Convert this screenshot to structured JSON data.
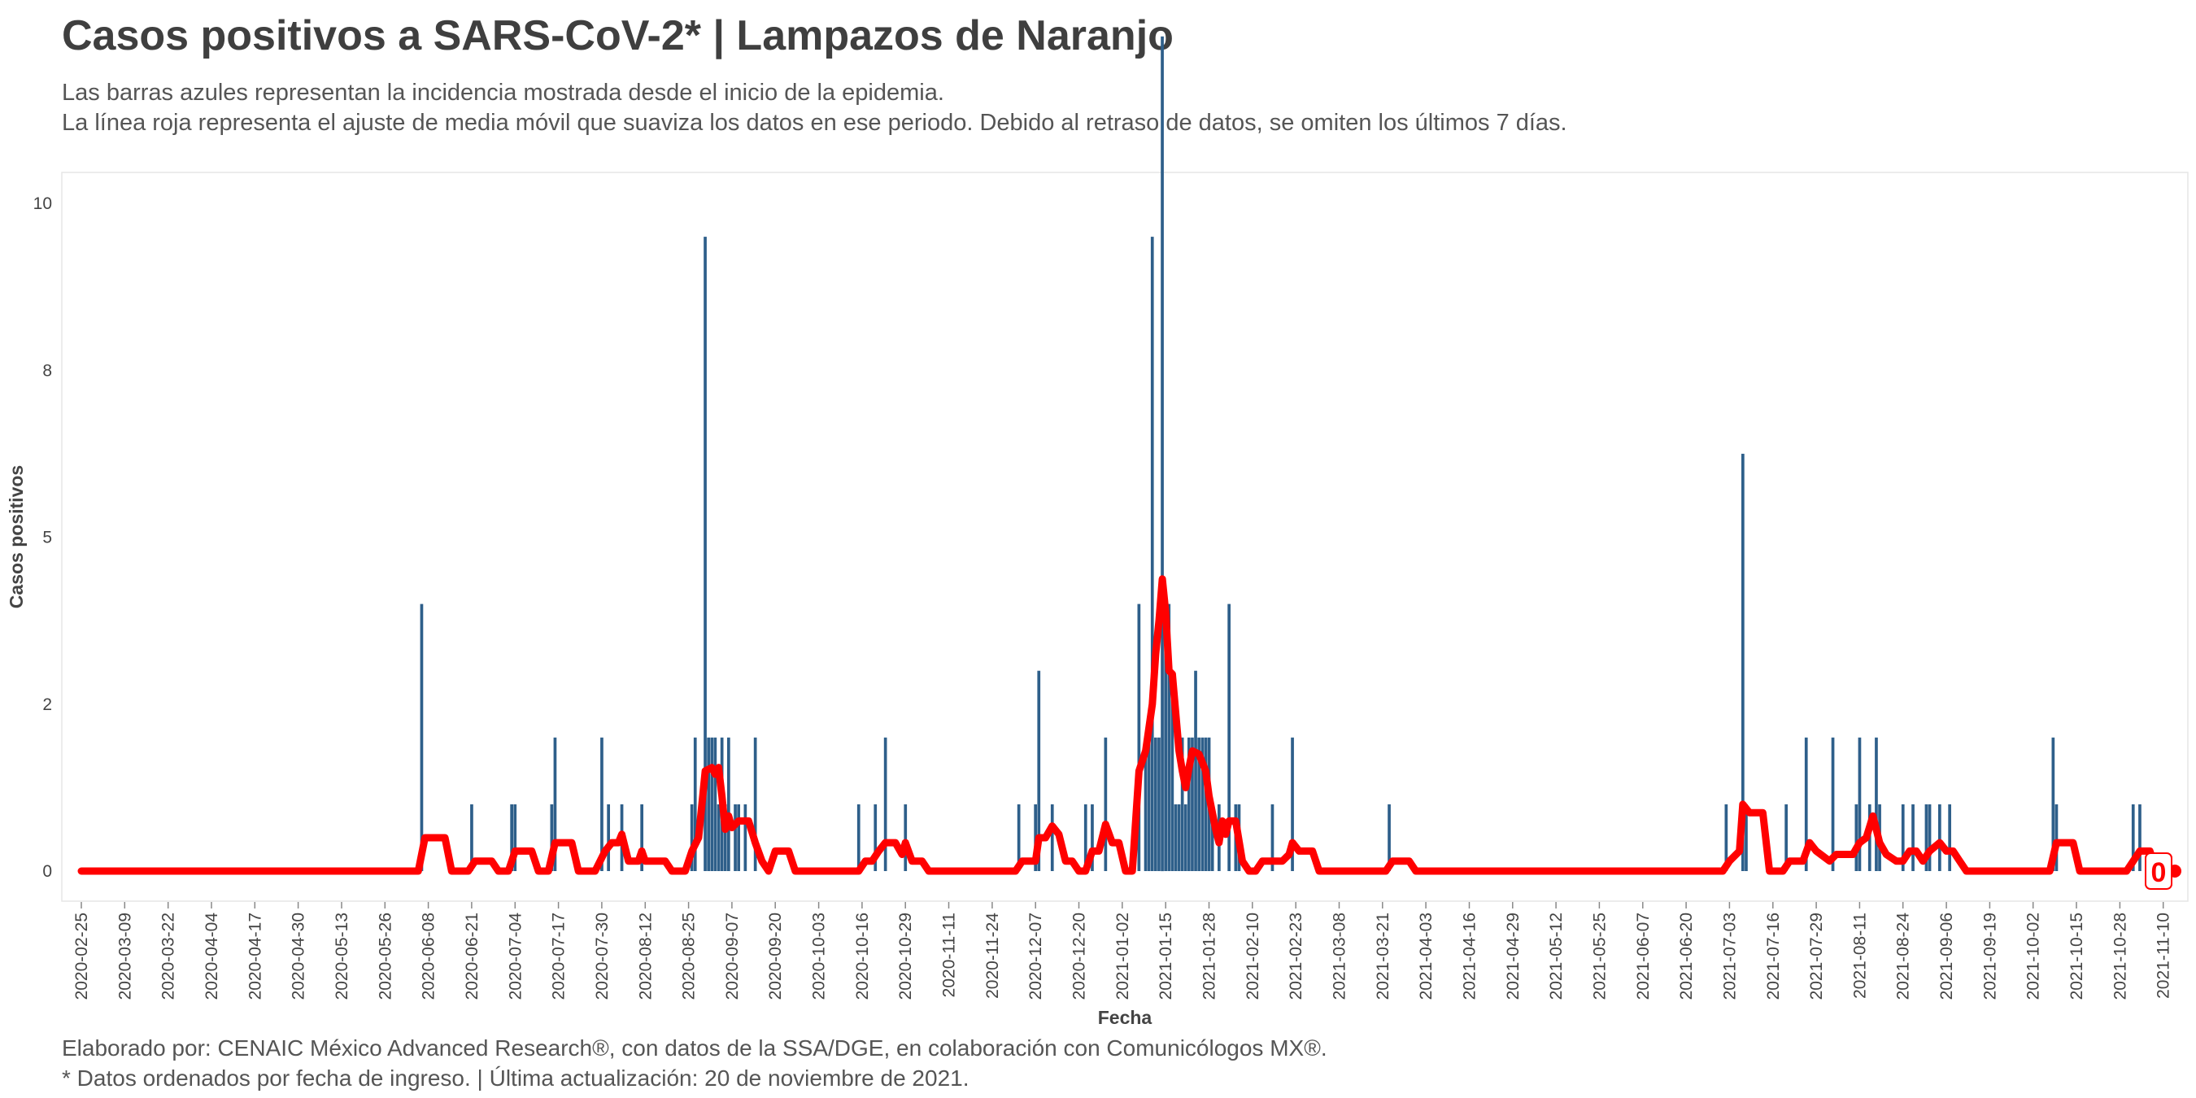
{
  "chart_data": {
    "type": "bar",
    "title": "Casos positivos a SARS-CoV-2* | Lampazos de Naranjo",
    "subtitle_lines": [
      "Las barras azules representan la incidencia mostrada desde el inicio de la epidemia.",
      "La línea roja representa el ajuste de media móvil que suaviza los datos en ese periodo. Debido al retraso de datos, se omiten los últimos 7 días."
    ],
    "xlabel": "Fecha",
    "ylabel": "Casos positivos",
    "y_ticks": [
      {
        "value": 0,
        "label": "0"
      },
      {
        "value": 1,
        "label": "2"
      },
      {
        "value": 2,
        "label": "5"
      },
      {
        "value": 3,
        "label": "8"
      },
      {
        "value": 4,
        "label": "10"
      }
    ],
    "ylim": [
      0,
      4
    ],
    "x_start": "2020-02-25",
    "x_end": "2021-11-13",
    "x_ticks": [
      "2020-02-25",
      "2020-03-09",
      "2020-03-22",
      "2020-04-04",
      "2020-04-17",
      "2020-04-30",
      "2020-05-13",
      "2020-05-26",
      "2020-06-08",
      "2020-06-21",
      "2020-07-04",
      "2020-07-17",
      "2020-07-30",
      "2020-08-12",
      "2020-08-25",
      "2020-09-07",
      "2020-09-20",
      "2020-10-03",
      "2020-10-16",
      "2020-10-29",
      "2020-11-11",
      "2020-11-24",
      "2020-12-07",
      "2020-12-20",
      "2021-01-02",
      "2021-01-15",
      "2021-01-28",
      "2021-02-10",
      "2021-02-23",
      "2021-03-08",
      "2021-03-21",
      "2021-04-03",
      "2021-04-16",
      "2021-04-29",
      "2021-05-12",
      "2021-05-25",
      "2021-06-07",
      "2021-06-20",
      "2021-07-03",
      "2021-07-16",
      "2021-07-29",
      "2021-08-11",
      "2021-08-24",
      "2021-09-06",
      "2021-09-19",
      "2021-10-02",
      "2021-10-15",
      "2021-10-28",
      "2021-11-10"
    ],
    "bars": [
      [
        "2020-06-06",
        1.6
      ],
      [
        "2020-06-21",
        0.4
      ],
      [
        "2020-07-03",
        0.4
      ],
      [
        "2020-07-04",
        0.4
      ],
      [
        "2020-07-15",
        0.4
      ],
      [
        "2020-07-16",
        0.8
      ],
      [
        "2020-07-30",
        0.8
      ],
      [
        "2020-08-01",
        0.4
      ],
      [
        "2020-08-05",
        0.4
      ],
      [
        "2020-08-11",
        0.4
      ],
      [
        "2020-08-26",
        0.4
      ],
      [
        "2020-08-27",
        0.8
      ],
      [
        "2020-08-30",
        3.8
      ],
      [
        "2020-08-31",
        0.8
      ],
      [
        "2020-09-01",
        0.8
      ],
      [
        "2020-09-02",
        0.8
      ],
      [
        "2020-09-03",
        0.4
      ],
      [
        "2020-09-04",
        0.8
      ],
      [
        "2020-09-05",
        0.4
      ],
      [
        "2020-09-06",
        0.8
      ],
      [
        "2020-09-08",
        0.4
      ],
      [
        "2020-09-09",
        0.4
      ],
      [
        "2020-09-11",
        0.4
      ],
      [
        "2020-09-14",
        0.8
      ],
      [
        "2020-10-15",
        0.4
      ],
      [
        "2020-10-20",
        0.4
      ],
      [
        "2020-10-23",
        0.8
      ],
      [
        "2020-10-29",
        0.4
      ],
      [
        "2020-12-02",
        0.4
      ],
      [
        "2020-12-07",
        0.4
      ],
      [
        "2020-12-08",
        1.2
      ],
      [
        "2020-12-12",
        0.4
      ],
      [
        "2020-12-22",
        0.4
      ],
      [
        "2020-12-24",
        0.4
      ],
      [
        "2020-12-28",
        0.8
      ],
      [
        "2021-01-07",
        1.6
      ],
      [
        "2021-01-09",
        0.8
      ],
      [
        "2021-01-10",
        0.8
      ],
      [
        "2021-01-11",
        3.8
      ],
      [
        "2021-01-12",
        0.8
      ],
      [
        "2021-01-13",
        0.8
      ],
      [
        "2021-01-14",
        5.0
      ],
      [
        "2021-01-15",
        1.6
      ],
      [
        "2021-01-16",
        1.6
      ],
      [
        "2021-01-17",
        1.2
      ],
      [
        "2021-01-18",
        0.4
      ],
      [
        "2021-01-19",
        0.4
      ],
      [
        "2021-01-20",
        0.8
      ],
      [
        "2021-01-21",
        0.4
      ],
      [
        "2021-01-22",
        0.8
      ],
      [
        "2021-01-23",
        0.8
      ],
      [
        "2021-01-24",
        1.2
      ],
      [
        "2021-01-25",
        0.8
      ],
      [
        "2021-01-26",
        0.8
      ],
      [
        "2021-01-27",
        0.8
      ],
      [
        "2021-01-28",
        0.8
      ],
      [
        "2021-01-29",
        0.4
      ],
      [
        "2021-01-31",
        0.4
      ],
      [
        "2021-02-03",
        1.6
      ],
      [
        "2021-02-05",
        0.4
      ],
      [
        "2021-02-06",
        0.4
      ],
      [
        "2021-02-16",
        0.4
      ],
      [
        "2021-02-22",
        0.8
      ],
      [
        "2021-03-23",
        0.4
      ],
      [
        "2021-07-02",
        0.4
      ],
      [
        "2021-07-07",
        2.5
      ],
      [
        "2021-07-08",
        0.4
      ],
      [
        "2021-07-20",
        0.4
      ],
      [
        "2021-07-26",
        0.8
      ],
      [
        "2021-08-03",
        0.8
      ],
      [
        "2021-08-10",
        0.4
      ],
      [
        "2021-08-11",
        0.8
      ],
      [
        "2021-08-14",
        0.4
      ],
      [
        "2021-08-16",
        0.8
      ],
      [
        "2021-08-17",
        0.4
      ],
      [
        "2021-08-24",
        0.4
      ],
      [
        "2021-08-27",
        0.4
      ],
      [
        "2021-08-31",
        0.4
      ],
      [
        "2021-09-01",
        0.4
      ],
      [
        "2021-09-04",
        0.4
      ],
      [
        "2021-09-07",
        0.4
      ],
      [
        "2021-10-08",
        0.8
      ],
      [
        "2021-10-09",
        0.4
      ],
      [
        "2021-11-01",
        0.4
      ],
      [
        "2021-11-03",
        0.4
      ]
    ],
    "moving_average": [
      [
        "2020-02-25",
        0
      ],
      [
        "2020-06-05",
        0
      ],
      [
        "2020-06-07",
        0.2
      ],
      [
        "2020-06-13",
        0.2
      ],
      [
        "2020-06-15",
        0
      ],
      [
        "2020-06-20",
        0
      ],
      [
        "2020-06-22",
        0.06
      ],
      [
        "2020-06-27",
        0.06
      ],
      [
        "2020-06-29",
        0
      ],
      [
        "2020-07-02",
        0
      ],
      [
        "2020-07-04",
        0.12
      ],
      [
        "2020-07-09",
        0.12
      ],
      [
        "2020-07-11",
        0
      ],
      [
        "2020-07-14",
        0
      ],
      [
        "2020-07-16",
        0.17
      ],
      [
        "2020-07-21",
        0.17
      ],
      [
        "2020-07-23",
        0
      ],
      [
        "2020-07-28",
        0
      ],
      [
        "2020-07-31",
        0.12
      ],
      [
        "2020-08-02",
        0.17
      ],
      [
        "2020-08-04",
        0.17
      ],
      [
        "2020-08-05",
        0.22
      ],
      [
        "2020-08-07",
        0.06
      ],
      [
        "2020-08-10",
        0.06
      ],
      [
        "2020-08-11",
        0.12
      ],
      [
        "2020-08-12",
        0.06
      ],
      [
        "2020-08-18",
        0.06
      ],
      [
        "2020-08-20",
        0
      ],
      [
        "2020-08-24",
        0
      ],
      [
        "2020-08-26",
        0.12
      ],
      [
        "2020-08-28",
        0.2
      ],
      [
        "2020-08-30",
        0.6
      ],
      [
        "2020-09-01",
        0.62
      ],
      [
        "2020-09-02",
        0.58
      ],
      [
        "2020-09-03",
        0.62
      ],
      [
        "2020-09-04",
        0.45
      ],
      [
        "2020-09-05",
        0.25
      ],
      [
        "2020-09-06",
        0.33
      ],
      [
        "2020-09-07",
        0.26
      ],
      [
        "2020-09-09",
        0.3
      ],
      [
        "2020-09-12",
        0.3
      ],
      [
        "2020-09-14",
        0.17
      ],
      [
        "2020-09-16",
        0.06
      ],
      [
        "2020-09-18",
        0
      ],
      [
        "2020-09-20",
        0.12
      ],
      [
        "2020-09-24",
        0.12
      ],
      [
        "2020-09-26",
        0
      ],
      [
        "2020-10-15",
        0
      ],
      [
        "2020-10-17",
        0.06
      ],
      [
        "2020-10-19",
        0.06
      ],
      [
        "2020-10-21",
        0.12
      ],
      [
        "2020-10-23",
        0.17
      ],
      [
        "2020-10-26",
        0.17
      ],
      [
        "2020-10-28",
        0.1
      ],
      [
        "2020-10-29",
        0.17
      ],
      [
        "2020-10-31",
        0.06
      ],
      [
        "2020-11-03",
        0.06
      ],
      [
        "2020-11-05",
        0
      ],
      [
        "2020-12-01",
        0
      ],
      [
        "2020-12-03",
        0.06
      ],
      [
        "2020-12-07",
        0.06
      ],
      [
        "2020-12-08",
        0.2
      ],
      [
        "2020-12-10",
        0.2
      ],
      [
        "2020-12-12",
        0.27
      ],
      [
        "2020-12-14",
        0.22
      ],
      [
        "2020-12-16",
        0.06
      ],
      [
        "2020-12-18",
        0.06
      ],
      [
        "2020-12-20",
        0
      ],
      [
        "2020-12-22",
        0
      ],
      [
        "2020-12-24",
        0.12
      ],
      [
        "2020-12-26",
        0.12
      ],
      [
        "2020-12-28",
        0.28
      ],
      [
        "2020-12-30",
        0.17
      ],
      [
        "2021-01-01",
        0.17
      ],
      [
        "2021-01-03",
        0
      ],
      [
        "2021-01-05",
        0
      ],
      [
        "2021-01-07",
        0.6
      ],
      [
        "2021-01-09",
        0.72
      ],
      [
        "2021-01-11",
        1.0
      ],
      [
        "2021-01-12",
        1.3
      ],
      [
        "2021-01-13",
        1.5
      ],
      [
        "2021-01-14",
        1.75
      ],
      [
        "2021-01-15",
        1.55
      ],
      [
        "2021-01-16",
        1.2
      ],
      [
        "2021-01-17",
        1.18
      ],
      [
        "2021-01-18",
        0.95
      ],
      [
        "2021-01-19",
        0.72
      ],
      [
        "2021-01-20",
        0.6
      ],
      [
        "2021-01-21",
        0.5
      ],
      [
        "2021-01-22",
        0.62
      ],
      [
        "2021-01-23",
        0.72
      ],
      [
        "2021-01-25",
        0.7
      ],
      [
        "2021-01-26",
        0.65
      ],
      [
        "2021-01-27",
        0.6
      ],
      [
        "2021-01-28",
        0.45
      ],
      [
        "2021-01-29",
        0.35
      ],
      [
        "2021-01-30",
        0.25
      ],
      [
        "2021-01-31",
        0.17
      ],
      [
        "2021-02-01",
        0.3
      ],
      [
        "2021-02-02",
        0.22
      ],
      [
        "2021-02-03",
        0.3
      ],
      [
        "2021-02-05",
        0.3
      ],
      [
        "2021-02-07",
        0.06
      ],
      [
        "2021-02-09",
        0
      ],
      [
        "2021-02-11",
        0
      ],
      [
        "2021-02-13",
        0.06
      ],
      [
        "2021-02-19",
        0.06
      ],
      [
        "2021-02-21",
        0.1
      ],
      [
        "2021-02-22",
        0.17
      ],
      [
        "2021-02-24",
        0.12
      ],
      [
        "2021-02-28",
        0.12
      ],
      [
        "2021-03-02",
        0
      ],
      [
        "2021-03-22",
        0
      ],
      [
        "2021-03-24",
        0.06
      ],
      [
        "2021-03-29",
        0.06
      ],
      [
        "2021-03-31",
        0
      ],
      [
        "2021-07-01",
        0
      ],
      [
        "2021-07-03",
        0.06
      ],
      [
        "2021-07-06",
        0.12
      ],
      [
        "2021-07-07",
        0.4
      ],
      [
        "2021-07-09",
        0.35
      ],
      [
        "2021-07-13",
        0.35
      ],
      [
        "2021-07-15",
        0
      ],
      [
        "2021-07-19",
        0
      ],
      [
        "2021-07-21",
        0.06
      ],
      [
        "2021-07-25",
        0.06
      ],
      [
        "2021-07-27",
        0.17
      ],
      [
        "2021-07-29",
        0.12
      ],
      [
        "2021-08-02",
        0.06
      ],
      [
        "2021-08-04",
        0.1
      ],
      [
        "2021-08-09",
        0.1
      ],
      [
        "2021-08-11",
        0.17
      ],
      [
        "2021-08-13",
        0.2
      ],
      [
        "2021-08-15",
        0.33
      ],
      [
        "2021-08-17",
        0.17
      ],
      [
        "2021-08-19",
        0.1
      ],
      [
        "2021-08-22",
        0.06
      ],
      [
        "2021-08-24",
        0.06
      ],
      [
        "2021-08-26",
        0.12
      ],
      [
        "2021-08-28",
        0.12
      ],
      [
        "2021-08-30",
        0.06
      ],
      [
        "2021-09-01",
        0.12
      ],
      [
        "2021-09-04",
        0.17
      ],
      [
        "2021-09-06",
        0.12
      ],
      [
        "2021-09-08",
        0.12
      ],
      [
        "2021-09-10",
        0.06
      ],
      [
        "2021-09-12",
        0
      ],
      [
        "2021-10-07",
        0
      ],
      [
        "2021-10-09",
        0.17
      ],
      [
        "2021-10-14",
        0.17
      ],
      [
        "2021-10-16",
        0
      ],
      [
        "2021-10-30",
        0
      ],
      [
        "2021-11-01",
        0.06
      ],
      [
        "2021-11-03",
        0.12
      ],
      [
        "2021-11-06",
        0.12
      ],
      [
        "2021-11-08",
        0
      ],
      [
        "2021-11-13",
        0
      ]
    ],
    "end_label": "0",
    "bar_color": "#2e5f8a",
    "line_color": "#ff0000",
    "grid": false
  },
  "footer_lines": [
    "Elaborado por: CENAIC México Advanced Research®, con datos de la SSA/DGE, en colaboración con Comunicólogos MX®.",
    "* Datos ordenados por fecha de ingreso. | Última actualización: 20 de noviembre de 2021."
  ]
}
